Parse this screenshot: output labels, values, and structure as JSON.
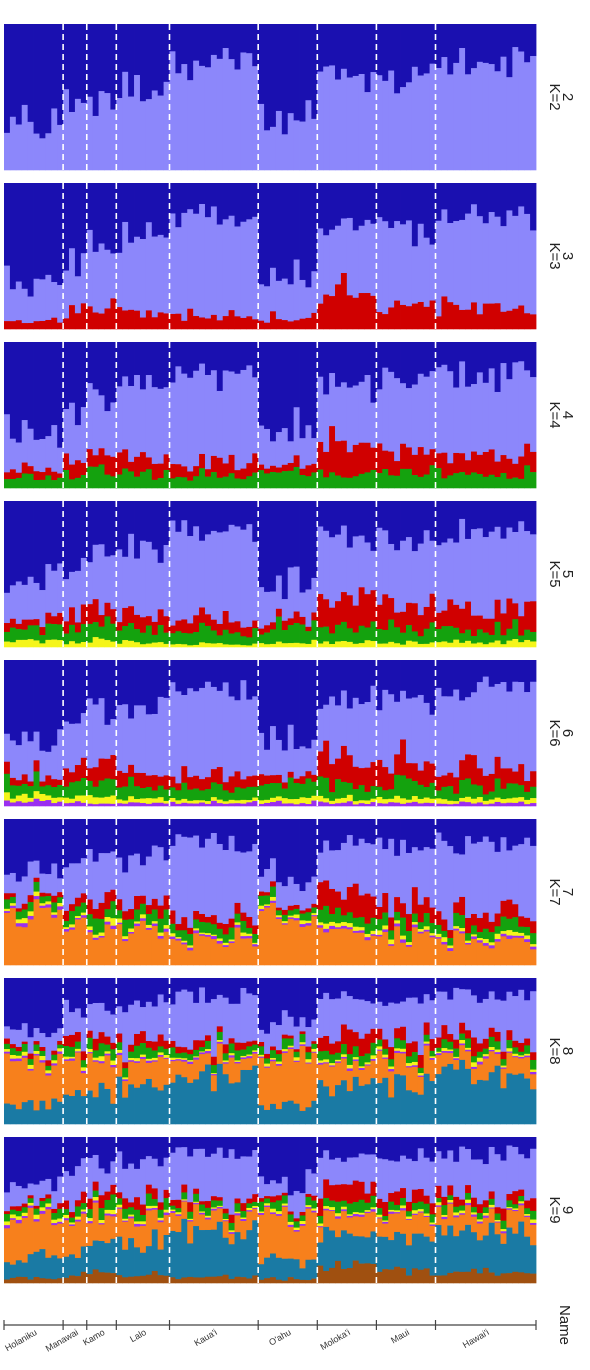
{
  "chart_data": {
    "type": "stacked-bar-structure",
    "axis_label": "Name",
    "populations": [
      {
        "name": "Holaniku",
        "count": 10
      },
      {
        "name": "Manawai",
        "count": 4
      },
      {
        "name": "Kamo",
        "count": 5
      },
      {
        "name": "Lalo",
        "count": 9
      },
      {
        "name": "Kaua'i",
        "count": 15
      },
      {
        "name": "O'ahu",
        "count": 10
      },
      {
        "name": "Moloka'i",
        "count": 10
      },
      {
        "name": "Maui",
        "count": 10
      },
      {
        "name": "Hawai'i",
        "count": 17
      }
    ],
    "panels": [
      {
        "k": 2,
        "label1": "2",
        "label2": "K=2"
      },
      {
        "k": 3,
        "label1": "3",
        "label2": "K=3"
      },
      {
        "k": 4,
        "label1": "4",
        "label2": "K=4"
      },
      {
        "k": 5,
        "label1": "5",
        "label2": "K=5"
      },
      {
        "k": 6,
        "label1": "6",
        "label2": "K=6"
      },
      {
        "k": 7,
        "label1": "7",
        "label2": "K=7"
      },
      {
        "k": 8,
        "label1": "8",
        "label2": "K=8"
      },
      {
        "k": 9,
        "label1": "9",
        "label2": "K=9"
      }
    ],
    "cluster_colors": [
      "#1a10b0",
      "#8c87fb",
      "#d00000",
      "#14a20e",
      "#f5f51a",
      "#9a2ff0",
      "#f7801c",
      "#1a7aa4",
      "#a05010"
    ],
    "population_profiles": [
      [
        0.55,
        0.25,
        0.05,
        0.08,
        0.04,
        0.03
      ],
      [
        0.4,
        0.35,
        0.1,
        0.1,
        0.03,
        0.02
      ],
      [
        0.35,
        0.35,
        0.12,
        0.12,
        0.04,
        0.02
      ],
      [
        0.3,
        0.45,
        0.1,
        0.1,
        0.03,
        0.02
      ],
      [
        0.2,
        0.6,
        0.08,
        0.08,
        0.02,
        0.02
      ],
      [
        0.55,
        0.25,
        0.05,
        0.1,
        0.03,
        0.02
      ],
      [
        0.25,
        0.4,
        0.2,
        0.1,
        0.03,
        0.02
      ],
      [
        0.25,
        0.45,
        0.15,
        0.1,
        0.03,
        0.02
      ],
      [
        0.2,
        0.55,
        0.12,
        0.08,
        0.03,
        0.02
      ]
    ],
    "grid": false,
    "legend": "none"
  }
}
